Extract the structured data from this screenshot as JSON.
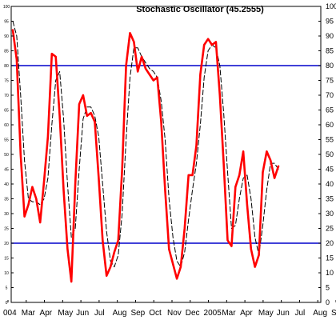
{
  "chart_data": {
    "type": "line",
    "title": "Stochastic Oscillator (45.2555)",
    "xlabel": "",
    "ylabel": "",
    "ylim": [
      0,
      100
    ],
    "y_ticks": [
      0,
      5,
      10,
      15,
      20,
      25,
      30,
      35,
      40,
      45,
      50,
      55,
      60,
      65,
      70,
      75,
      80,
      85,
      90,
      95,
      100
    ],
    "y_ticks_left_printed": [
      "0",
      "5",
      "10",
      "15",
      "20",
      "25",
      "30",
      "35",
      "40",
      "45",
      "50",
      "55",
      "60",
      "65",
      "70",
      "75",
      "80",
      "85",
      "90",
      "95",
      "100"
    ],
    "x_tick_labels": [
      "004",
      "Mar",
      "Apr",
      "May",
      "Jun",
      "Jul",
      "Aug",
      "Sep",
      "Oct",
      "Nov",
      "Dec",
      "2005",
      "Mar",
      "Apr",
      "May",
      "Jun",
      "Jul",
      "Aug",
      "Sep"
    ],
    "reference_lines": [
      {
        "value": 80,
        "color": "#0000cc"
      },
      {
        "value": 20,
        "color": "#0000cc"
      }
    ],
    "grid": false,
    "series": [
      {
        "style": "solid",
        "color": "#ff0000",
        "values": [
          92,
          82,
          50,
          29,
          33,
          39,
          35,
          27,
          41,
          56,
          84,
          83,
          63,
          38,
          18,
          7,
          40,
          67,
          70,
          63,
          64,
          61,
          42,
          21,
          9,
          12,
          17,
          21,
          45,
          80,
          91,
          88,
          78,
          83,
          79,
          77,
          75,
          76,
          61,
          38,
          18,
          13,
          8,
          12,
          25,
          43,
          43,
          53,
          77,
          87,
          89,
          87,
          88,
          70,
          47,
          21,
          19,
          39,
          43,
          51,
          33,
          18,
          12,
          16,
          44,
          51,
          48,
          42,
          46
        ]
      },
      {
        "style": "dashed",
        "color": "#000000",
        "values": [
          95,
          90,
          70,
          48,
          35,
          34,
          34,
          33,
          35,
          42,
          60,
          75,
          78,
          62,
          40,
          22,
          25,
          45,
          62,
          66,
          66,
          63,
          56,
          40,
          24,
          14,
          12,
          16,
          30,
          55,
          76,
          86,
          86,
          83,
          81,
          79,
          78,
          76,
          68,
          55,
          35,
          22,
          14,
          12,
          17,
          28,
          38,
          47,
          60,
          76,
          85,
          87,
          86,
          80,
          64,
          44,
          25,
          26,
          35,
          42,
          43,
          35,
          22,
          16,
          26,
          38,
          47,
          47,
          45
        ]
      }
    ]
  }
}
